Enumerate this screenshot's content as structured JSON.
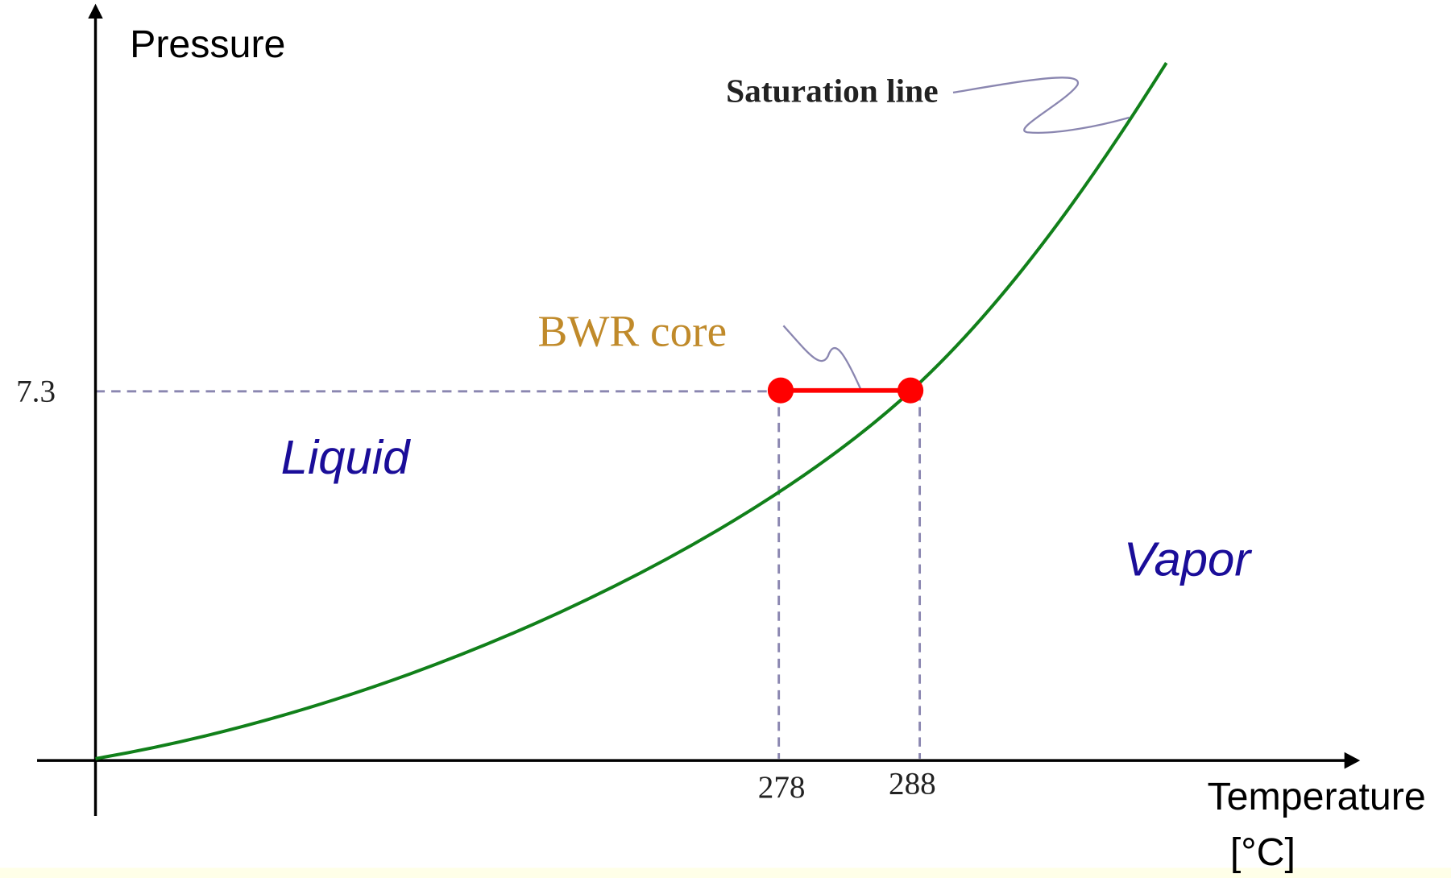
{
  "axes": {
    "y_label": "Pressure",
    "x_label": [
      "Temperature",
      "[°C]"
    ]
  },
  "ticks": {
    "y": "7.3",
    "x": [
      "278",
      "288"
    ]
  },
  "annotations": {
    "saturation": "Saturation line",
    "core": "BWR core"
  },
  "regions": {
    "liquid": "Liquid",
    "vapor": "Vapor"
  }
}
